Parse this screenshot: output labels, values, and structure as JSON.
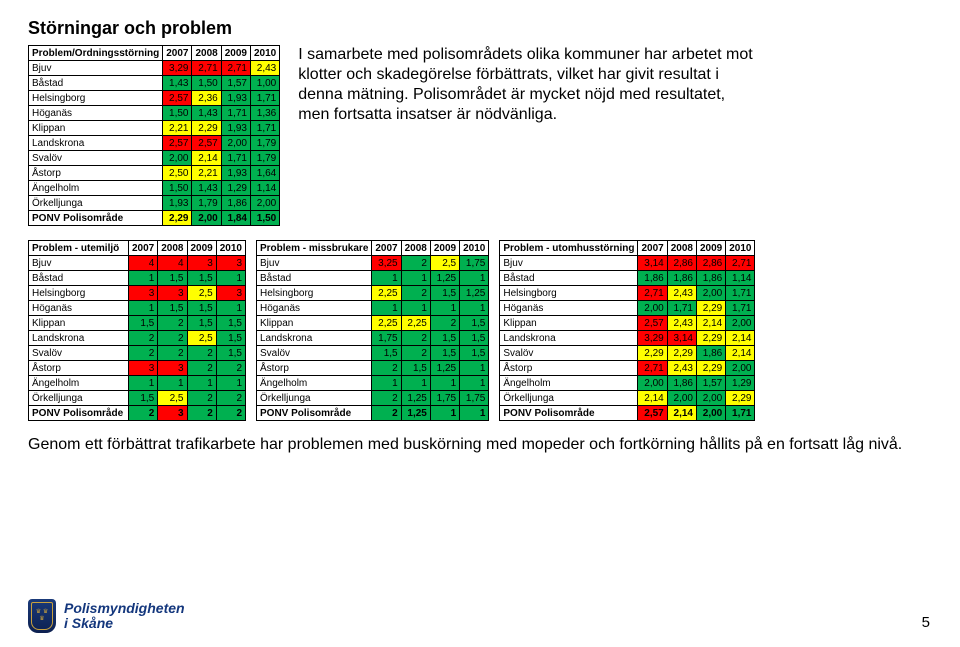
{
  "title": "Störningar och problem",
  "para_top": "I samarbete med polisområdets olika kommuner har arbetet mot klotter och skadegörelse förbättrats, vilket har givit resultat i denna mätning. Polisområdet är mycket nöjd med resultatet, men fortsatta insatser är nödvänliga.",
  "para_bottom": "Genom ett förbättrat trafikarbete har problemen med buskörning med mopeder och fortkörning hållits på en fortsatt låg nivå.",
  "footer_line1": "Polismyndigheten",
  "footer_line2": "i Skåne",
  "page_number": "5",
  "thresholds": {
    "green_max": 2.0,
    "yellow_max": 2.5
  },
  "colors": {
    "green": "#00b050",
    "yellow": "#ffff00",
    "red": "#ff0000",
    "header_bg": "#ffffff"
  },
  "main_table": {
    "header": [
      "Problem/Ordningsstörning",
      "2007",
      "2008",
      "2009",
      "2010"
    ],
    "rows": [
      [
        "Bjuv",
        "3,29",
        "2,71",
        "2,71",
        "2,43"
      ],
      [
        "Båstad",
        "1,43",
        "1,50",
        "1,57",
        "1,00"
      ],
      [
        "Helsingborg",
        "2,57",
        "2,36",
        "1,93",
        "1,71"
      ],
      [
        "Höganäs",
        "1,50",
        "1,43",
        "1,71",
        "1,36"
      ],
      [
        "Klippan",
        "2,21",
        "2,29",
        "1,93",
        "1,71"
      ],
      [
        "Landskrona",
        "2,57",
        "2,57",
        "2,00",
        "1,79"
      ],
      [
        "Svalöv",
        "2,00",
        "2,14",
        "1,71",
        "1,79"
      ],
      [
        "Åstorp",
        "2,50",
        "2,21",
        "1,93",
        "1,64"
      ],
      [
        "Ängelholm",
        "1,50",
        "1,43",
        "1,29",
        "1,14"
      ],
      [
        "Örkelljunga",
        "1,93",
        "1,79",
        "1,86",
        "2,00"
      ],
      [
        "PONV Polisområde",
        "2,29",
        "2,00",
        "1,84",
        "1,50"
      ]
    ]
  },
  "table_a": {
    "header": [
      "Problem - utemiljö",
      "2007",
      "2008",
      "2009",
      "2010"
    ],
    "rows": [
      [
        "Bjuv",
        "4",
        "4",
        "3",
        "3"
      ],
      [
        "Båstad",
        "1",
        "1,5",
        "1,5",
        "1"
      ],
      [
        "Helsingborg",
        "3",
        "3",
        "2,5",
        "3"
      ],
      [
        "Höganäs",
        "1",
        "1,5",
        "1,5",
        "1"
      ],
      [
        "Klippan",
        "1,5",
        "2",
        "1,5",
        "1,5"
      ],
      [
        "Landskrona",
        "2",
        "2",
        "2,5",
        "1,5"
      ],
      [
        "Svalöv",
        "2",
        "2",
        "2",
        "1,5"
      ],
      [
        "Åstorp",
        "3",
        "3",
        "2",
        "2"
      ],
      [
        "Ängelholm",
        "1",
        "1",
        "1",
        "1"
      ],
      [
        "Örkelljunga",
        "1,5",
        "2,5",
        "2",
        "2"
      ],
      [
        "PONV Polisområde",
        "2",
        "3",
        "2",
        "2"
      ]
    ]
  },
  "table_b": {
    "header": [
      "Problem - missbrukare",
      "2007",
      "2008",
      "2009",
      "2010"
    ],
    "rows": [
      [
        "Bjuv",
        "3,25",
        "2",
        "2,5",
        "1,75"
      ],
      [
        "Båstad",
        "1",
        "1",
        "1,25",
        "1"
      ],
      [
        "Helsingborg",
        "2,25",
        "2",
        "1,5",
        "1,25"
      ],
      [
        "Höganäs",
        "1",
        "1",
        "1",
        "1"
      ],
      [
        "Klippan",
        "2,25",
        "2,25",
        "2",
        "1,5"
      ],
      [
        "Landskrona",
        "1,75",
        "2",
        "1,5",
        "1,5"
      ],
      [
        "Svalöv",
        "1,5",
        "2",
        "1,5",
        "1,5"
      ],
      [
        "Åstorp",
        "2",
        "1,5",
        "1,25",
        "1"
      ],
      [
        "Ängelholm",
        "1",
        "1",
        "1",
        "1"
      ],
      [
        "Örkelljunga",
        "2",
        "1,25",
        "1,75",
        "1,75"
      ],
      [
        "PONV Polisområde",
        "2",
        "1,25",
        "1",
        "1"
      ]
    ]
  },
  "table_c": {
    "header": [
      "Problem - utomhusstörning",
      "2007",
      "2008",
      "2009",
      "2010"
    ],
    "rows": [
      [
        "Bjuv",
        "3,14",
        "2,86",
        "2,86",
        "2,71"
      ],
      [
        "Båstad",
        "1,86",
        "1,86",
        "1,86",
        "1,14"
      ],
      [
        "Helsingborg",
        "2,71",
        "2,43",
        "2,00",
        "1,71"
      ],
      [
        "Höganäs",
        "2,00",
        "1,71",
        "2,29",
        "1,71"
      ],
      [
        "Klippan",
        "2,57",
        "2,43",
        "2,14",
        "2,00"
      ],
      [
        "Landskrona",
        "3,29",
        "3,14",
        "2,29",
        "2,14"
      ],
      [
        "Svalöv",
        "2,29",
        "2,29",
        "1,86",
        "2,14"
      ],
      [
        "Åstorp",
        "2,71",
        "2,43",
        "2,29",
        "2,00"
      ],
      [
        "Ängelholm",
        "2,00",
        "1,86",
        "1,57",
        "1,29"
      ],
      [
        "Örkelljunga",
        "2,14",
        "2,00",
        "2,00",
        "2,29"
      ],
      [
        "PONV Polisområde",
        "2,57",
        "2,14",
        "2,00",
        "1,71"
      ]
    ]
  }
}
